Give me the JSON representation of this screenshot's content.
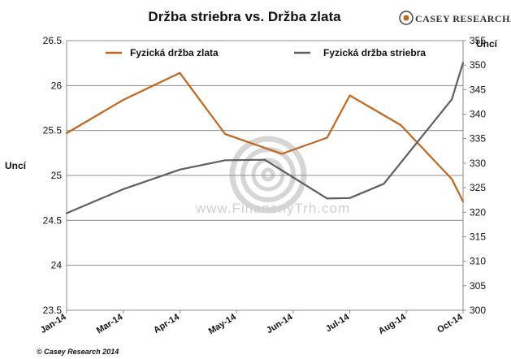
{
  "brand": {
    "text": "CASEY RESEARCH.COM"
  },
  "copyright": "© Casey Research 2014",
  "watermark": {
    "text": "www.FinancnyTrh.com"
  },
  "colors": {
    "gold": "#c0661e",
    "silver": "#5f5f5f",
    "grid": "#8c8c8c"
  },
  "chart_data": {
    "type": "line",
    "title": "Držba striebra vs. Držba zlata",
    "x": [
      "Jan-14",
      "Mar-14",
      "Apr-14",
      "May-14",
      "Jun-14",
      "Jul-14",
      "Aug-14",
      "Oct-14"
    ],
    "y_left": {
      "label": "Uncí",
      "min": 23.5,
      "max": 26.5,
      "ticks": [
        23.5,
        24,
        24.5,
        25,
        25.5,
        26,
        26.5
      ]
    },
    "y_right": {
      "label": "Uncí",
      "min": 300,
      "max": 355,
      "ticks": [
        300,
        305,
        310,
        315,
        320,
        325,
        330,
        335,
        340,
        345,
        350,
        355
      ]
    },
    "series": [
      {
        "name": "Fyzická držba zlata",
        "axis": "left",
        "color": "#c0661e",
        "points": [
          {
            "x": 0,
            "y": 25.47
          },
          {
            "x": 1,
            "y": 25.84
          },
          {
            "x": 2,
            "y": 26.14
          },
          {
            "x": 2.8,
            "y": 25.46
          },
          {
            "x": 3.8,
            "y": 25.24
          },
          {
            "x": 4.6,
            "y": 25.42
          },
          {
            "x": 5,
            "y": 25.89
          },
          {
            "x": 5.9,
            "y": 25.56
          },
          {
            "x": 6.8,
            "y": 24.96
          },
          {
            "x": 7,
            "y": 24.71
          }
        ]
      },
      {
        "name": "Fyzická držba striebra",
        "axis": "right",
        "color": "#5f5f5f",
        "points": [
          {
            "x": 0,
            "y": 319.8
          },
          {
            "x": 1,
            "y": 324.7
          },
          {
            "x": 2,
            "y": 328.7
          },
          {
            "x": 2.8,
            "y": 330.6
          },
          {
            "x": 3.5,
            "y": 330.7
          },
          {
            "x": 4.6,
            "y": 322.8
          },
          {
            "x": 5,
            "y": 322.9
          },
          {
            "x": 5.6,
            "y": 325.8
          },
          {
            "x": 6.8,
            "y": 343.0
          },
          {
            "x": 7,
            "y": 350.5
          }
        ]
      }
    ],
    "grid": "horizontal",
    "legend": "top"
  }
}
